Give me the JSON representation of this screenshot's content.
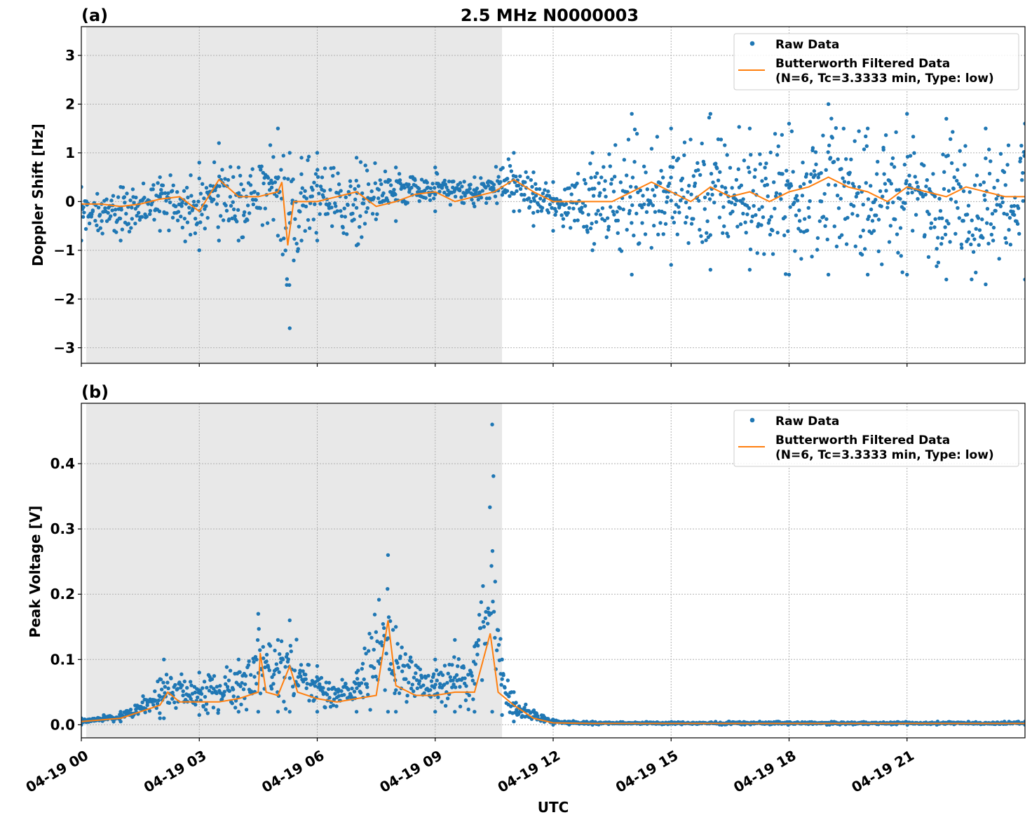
{
  "chart_data": [
    {
      "type": "scatter",
      "panel_label": "(a)",
      "title": "2.5 MHz N0000003",
      "xlabel": "",
      "ylabel": "Doppler Shift [Hz]",
      "xlim": [
        0,
        24
      ],
      "ylim": [
        -3.32,
        3.59
      ],
      "yticks": [
        -3,
        -2,
        -1,
        0,
        1,
        2,
        3
      ],
      "ytick_labels": [
        "−3",
        "−2",
        "−1",
        "0",
        "1",
        "2",
        "3"
      ],
      "grid": true,
      "legend_position": "top-right",
      "shaded_region_hours": [
        0.125,
        10.7
      ],
      "series": [
        {
          "name": "Raw Data",
          "kind": "points",
          "color": "#1f77b4",
          "envelope": [
            {
              "x": 0,
              "lo": -0.8,
              "hi": 0.3
            },
            {
              "x": 1,
              "lo": -0.8,
              "hi": 0.3
            },
            {
              "x": 2,
              "lo": -0.6,
              "hi": 0.5
            },
            {
              "x": 3,
              "lo": -1.0,
              "hi": 0.8
            },
            {
              "x": 3.5,
              "lo": -0.8,
              "hi": 1.2
            },
            {
              "x": 4,
              "lo": -0.8,
              "hi": 0.7
            },
            {
              "x": 5,
              "lo": -0.7,
              "hi": 1.5
            },
            {
              "x": 5.3,
              "lo": -2.6,
              "hi": 1.0
            },
            {
              "x": 5.6,
              "lo": -0.8,
              "hi": 0.9
            },
            {
              "x": 6,
              "lo": -0.8,
              "hi": 1.0
            },
            {
              "x": 7,
              "lo": -0.9,
              "hi": 0.9
            },
            {
              "x": 8,
              "lo": -0.4,
              "hi": 0.7
            },
            {
              "x": 9,
              "lo": -0.2,
              "hi": 0.7
            },
            {
              "x": 10,
              "lo": -0.1,
              "hi": 0.5
            },
            {
              "x": 11,
              "lo": -0.2,
              "hi": 1.0
            },
            {
              "x": 11.5,
              "lo": -0.5,
              "hi": 0.6
            },
            {
              "x": 12,
              "lo": -0.6,
              "hi": 0.4
            },
            {
              "x": 13,
              "lo": -1.0,
              "hi": 1.0
            },
            {
              "x": 14,
              "lo": -1.5,
              "hi": 1.8
            },
            {
              "x": 15,
              "lo": -1.3,
              "hi": 1.5
            },
            {
              "x": 16,
              "lo": -1.4,
              "hi": 1.8
            },
            {
              "x": 17,
              "lo": -1.4,
              "hi": 1.5
            },
            {
              "x": 18,
              "lo": -1.5,
              "hi": 1.6
            },
            {
              "x": 19,
              "lo": -1.5,
              "hi": 2.0
            },
            {
              "x": 20,
              "lo": -1.5,
              "hi": 1.5
            },
            {
              "x": 21,
              "lo": -1.5,
              "hi": 1.8
            },
            {
              "x": 22,
              "lo": -1.6,
              "hi": 1.7
            },
            {
              "x": 23,
              "lo": -1.7,
              "hi": 1.5
            },
            {
              "x": 24,
              "lo": -1.6,
              "hi": 1.6
            }
          ]
        },
        {
          "name": "Butterworth Filtered Data\n(N=6, Tc=3.3333 min, Type: low)",
          "kind": "line",
          "color": "#ff7f0e",
          "points": [
            [
              0,
              -0.05
            ],
            [
              0.5,
              -0.05
            ],
            [
              1,
              -0.1
            ],
            [
              1.5,
              -0.05
            ],
            [
              2,
              0.05
            ],
            [
              2.5,
              0.1
            ],
            [
              3,
              -0.2
            ],
            [
              3.5,
              0.45
            ],
            [
              4,
              0.1
            ],
            [
              4.5,
              0.1
            ],
            [
              5,
              0.2
            ],
            [
              5.1,
              0.4
            ],
            [
              5.25,
              -0.9
            ],
            [
              5.4,
              0.0
            ],
            [
              6,
              0.0
            ],
            [
              6.5,
              0.1
            ],
            [
              7,
              0.2
            ],
            [
              7.5,
              -0.1
            ],
            [
              8,
              0.0
            ],
            [
              8.5,
              0.15
            ],
            [
              9,
              0.2
            ],
            [
              9.5,
              0.0
            ],
            [
              10,
              0.1
            ],
            [
              10.5,
              0.2
            ],
            [
              11,
              0.45
            ],
            [
              11.5,
              0.2
            ],
            [
              12,
              0.0
            ],
            [
              12.5,
              0.0
            ],
            [
              13,
              0.0
            ],
            [
              13.5,
              0.0
            ],
            [
              14,
              0.2
            ],
            [
              14.5,
              0.4
            ],
            [
              15,
              0.2
            ],
            [
              15.5,
              0.0
            ],
            [
              16,
              0.3
            ],
            [
              16.5,
              0.1
            ],
            [
              17,
              0.2
            ],
            [
              17.5,
              0.0
            ],
            [
              18,
              0.2
            ],
            [
              18.5,
              0.3
            ],
            [
              19,
              0.5
            ],
            [
              19.5,
              0.3
            ],
            [
              20,
              0.2
            ],
            [
              20.5,
              0.0
            ],
            [
              21,
              0.3
            ],
            [
              21.5,
              0.2
            ],
            [
              22,
              0.1
            ],
            [
              22.5,
              0.3
            ],
            [
              23,
              0.2
            ],
            [
              23.5,
              0.1
            ],
            [
              24,
              0.1
            ]
          ]
        }
      ]
    },
    {
      "type": "scatter",
      "panel_label": "(b)",
      "title": "",
      "xlabel": "UTC",
      "ylabel": "Peak Voltage [V]",
      "xlim": [
        0,
        24
      ],
      "ylim": [
        -0.02,
        0.4925
      ],
      "yticks": [
        0,
        0.1,
        0.2,
        0.3,
        0.4
      ],
      "ytick_labels": [
        "0.0",
        "0.1",
        "0.2",
        "0.3",
        "0.4"
      ],
      "xticks": [
        0,
        3,
        6,
        9,
        12,
        15,
        18,
        21
      ],
      "xtick_labels": [
        "04-19 00",
        "04-19 03",
        "04-19 06",
        "04-19 09",
        "04-19 12",
        "04-19 15",
        "04-19 18",
        "04-19 21"
      ],
      "grid": true,
      "legend_position": "top-right",
      "shaded_region_hours": [
        0.125,
        10.7
      ],
      "series": [
        {
          "name": "Raw Data",
          "kind": "points",
          "color": "#1f77b4",
          "envelope": [
            {
              "x": 0,
              "lo": 0.0,
              "hi": 0.01
            },
            {
              "x": 1,
              "lo": 0.005,
              "hi": 0.02
            },
            {
              "x": 2,
              "lo": 0.01,
              "hi": 0.07
            },
            {
              "x": 2.1,
              "lo": 0.01,
              "hi": 0.1
            },
            {
              "x": 3,
              "lo": 0.015,
              "hi": 0.08
            },
            {
              "x": 4,
              "lo": 0.02,
              "hi": 0.1
            },
            {
              "x": 4.5,
              "lo": 0.02,
              "hi": 0.17
            },
            {
              "x": 5,
              "lo": 0.02,
              "hi": 0.13
            },
            {
              "x": 5.3,
              "lo": 0.02,
              "hi": 0.16
            },
            {
              "x": 6,
              "lo": 0.02,
              "hi": 0.09
            },
            {
              "x": 7,
              "lo": 0.02,
              "hi": 0.08
            },
            {
              "x": 7.8,
              "lo": 0.02,
              "hi": 0.26
            },
            {
              "x": 8,
              "lo": 0.02,
              "hi": 0.15
            },
            {
              "x": 9,
              "lo": 0.02,
              "hi": 0.1
            },
            {
              "x": 9.5,
              "lo": 0.02,
              "hi": 0.13
            },
            {
              "x": 10,
              "lo": 0.02,
              "hi": 0.12
            },
            {
              "x": 10.45,
              "lo": 0.02,
              "hi": 0.46
            },
            {
              "x": 10.7,
              "lo": 0.015,
              "hi": 0.1
            },
            {
              "x": 11,
              "lo": 0.005,
              "hi": 0.05
            },
            {
              "x": 12,
              "lo": 0.0,
              "hi": 0.008
            },
            {
              "x": 13,
              "lo": 0.0,
              "hi": 0.005
            },
            {
              "x": 24,
              "lo": 0.0,
              "hi": 0.005
            }
          ]
        },
        {
          "name": "Butterworth Filtered Data\n(N=6, Tc=3.3333 min, Type: low)",
          "kind": "line",
          "color": "#ff7f0e",
          "points": [
            [
              0,
              0.005
            ],
            [
              1,
              0.01
            ],
            [
              1.5,
              0.02
            ],
            [
              2,
              0.03
            ],
            [
              2.2,
              0.05
            ],
            [
              2.5,
              0.035
            ],
            [
              3,
              0.035
            ],
            [
              3.5,
              0.035
            ],
            [
              4,
              0.04
            ],
            [
              4.5,
              0.05
            ],
            [
              4.55,
              0.11
            ],
            [
              4.7,
              0.05
            ],
            [
              5,
              0.045
            ],
            [
              5.3,
              0.09
            ],
            [
              5.5,
              0.05
            ],
            [
              6,
              0.04
            ],
            [
              6.5,
              0.035
            ],
            [
              7,
              0.04
            ],
            [
              7.5,
              0.045
            ],
            [
              7.8,
              0.16
            ],
            [
              8,
              0.06
            ],
            [
              8.5,
              0.045
            ],
            [
              9,
              0.045
            ],
            [
              9.5,
              0.05
            ],
            [
              10,
              0.05
            ],
            [
              10.4,
              0.14
            ],
            [
              10.6,
              0.05
            ],
            [
              11,
              0.03
            ],
            [
              11.5,
              0.01
            ],
            [
              12,
              0.003
            ],
            [
              13,
              0.002
            ],
            [
              24,
              0.002
            ]
          ]
        }
      ]
    }
  ],
  "legend": {
    "raw": "Raw Data",
    "filtered_line1": "Butterworth Filtered Data",
    "filtered_line2": "(N=6, Tc=3.3333 min, Type: low)"
  }
}
